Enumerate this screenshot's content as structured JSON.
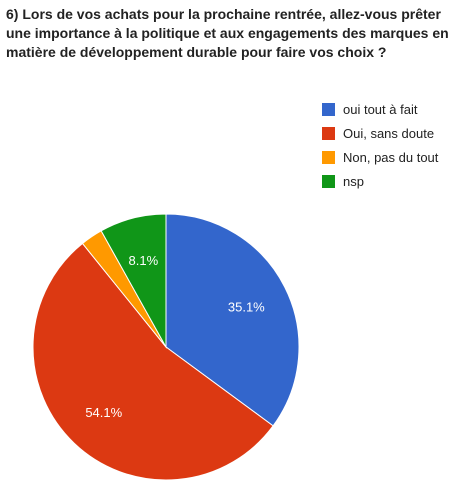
{
  "chart_data": {
    "type": "pie",
    "title": "6) Lors de vos achats pour la prochaine rentrée, allez-vous prêter une importance à la politique et aux engagements des marques en matière de développement durable pour faire vos choix ?",
    "categories": [
      "oui tout à fait",
      "Oui, sans doute",
      "Non, pas du tout",
      "nsp"
    ],
    "values": [
      35.1,
      54.1,
      2.7,
      8.1
    ],
    "data_labels": [
      "35.1%",
      "54.1%",
      "",
      "8.1%"
    ],
    "colors": [
      "#3366cc",
      "#dc3912",
      "#ff9900",
      "#109618"
    ],
    "legend_position": "right"
  }
}
